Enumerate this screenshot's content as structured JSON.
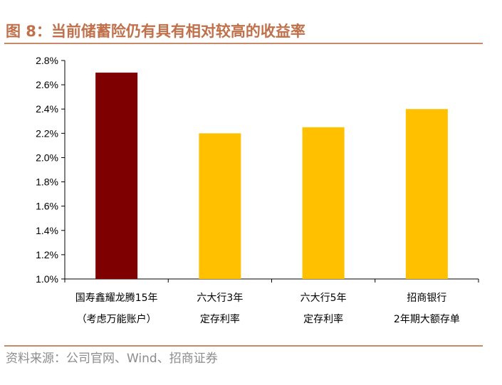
{
  "title": "图 8：当前储蓄险仍有具有相对较高的收益率",
  "source": "资料来源：公司官网、Wind、招商证券",
  "colors": {
    "accent": "#c0704a",
    "bar_highlight": "#7f0000",
    "bar_default": "#ffc000"
  },
  "chart_data": {
    "type": "bar",
    "categories": [
      [
        "国寿鑫耀龙腾15年",
        "（考虑万能账户）"
      ],
      [
        "六大行3年",
        "定存利率"
      ],
      [
        "六大行5年",
        "定存利率"
      ],
      [
        "招商银行",
        "2年期大额存单"
      ]
    ],
    "values": [
      2.7,
      2.2,
      2.25,
      2.4
    ],
    "bar_colors": [
      "#7f0000",
      "#ffc000",
      "#ffc000",
      "#ffc000"
    ],
    "ylim": [
      1.0,
      2.8
    ],
    "yticks": [
      "1.0%",
      "1.2%",
      "1.4%",
      "1.6%",
      "1.8%",
      "2.0%",
      "2.2%",
      "2.4%",
      "2.6%",
      "2.8%"
    ],
    "ytick_values": [
      1.0,
      1.2,
      1.4,
      1.6,
      1.8,
      2.0,
      2.2,
      2.4,
      2.6,
      2.8
    ],
    "grid": false,
    "legend": "none"
  }
}
